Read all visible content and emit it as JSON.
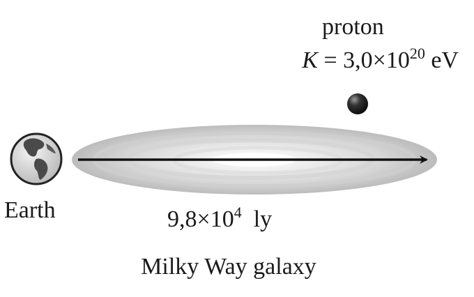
{
  "labels": {
    "proton": "proton",
    "energy_symbol": "K",
    "energy_equals": "=",
    "energy_mantissa": "3,0",
    "energy_times": "×",
    "energy_base": "10",
    "energy_exponent": "20",
    "energy_unit": "eV",
    "earth": "Earth",
    "distance_mantissa": "9,8",
    "distance_times": "×",
    "distance_base": "10",
    "distance_exponent": "4",
    "distance_unit": "ly",
    "galaxy": "Milky Way galaxy"
  },
  "colors": {
    "arrow": "#111111",
    "proton_ball": "#1c1c1c",
    "galaxy_core": "#ffffff",
    "galaxy_edge": "#bdbdbd",
    "earth_ocean": "#d9d9d9",
    "earth_land": "#4a4a4a"
  }
}
